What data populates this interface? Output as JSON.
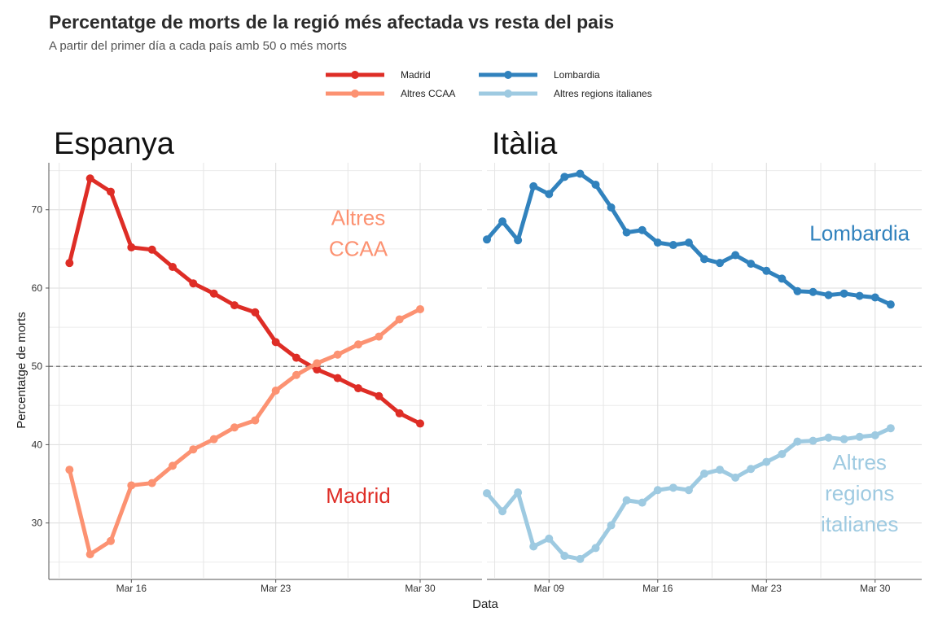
{
  "title": "Percentatge de morts de la regió més afectada vs resta del pais",
  "subtitle": "A partir del primer día a cada país amb 50 o més morts",
  "legend": [
    {
      "name": "Madrid",
      "color": "#de2d26"
    },
    {
      "name": "Lombardia",
      "color": "#3182bd"
    },
    {
      "name": "Altres CCAA",
      "color": "#fc9272"
    },
    {
      "name": "Altres regions italianes",
      "color": "#9ecae1"
    }
  ],
  "chart_data": {
    "type": "line",
    "xlabel": "Data",
    "ylabel": "Percentatge de morts",
    "ylim": [
      23,
      76
    ],
    "yticks": [
      30,
      40,
      50,
      60,
      70
    ],
    "reference_line": 50,
    "grid": true,
    "legend_position": "top",
    "panels": [
      {
        "title": "Espanya",
        "xlim": [
          "2020-03-12",
          "2020-04-02"
        ],
        "xticks": [
          {
            "date": "2020-03-16",
            "label": "Mar 16"
          },
          {
            "date": "2020-03-23",
            "label": "Mar 23"
          },
          {
            "date": "2020-03-30",
            "label": "Mar 30"
          }
        ],
        "labels": [
          {
            "text": [
              "Altres",
              "CCAA"
            ],
            "color": "#fc9272",
            "x": "2020-03-27",
            "y": 67
          },
          {
            "text": [
              "Madrid"
            ],
            "color": "#de2d26",
            "x": "2020-03-27",
            "y": 33.5
          }
        ],
        "series": [
          {
            "name": "Madrid",
            "color": "#de2d26",
            "x": [
              "2020-03-13",
              "2020-03-14",
              "2020-03-15",
              "2020-03-16",
              "2020-03-17",
              "2020-03-18",
              "2020-03-19",
              "2020-03-20",
              "2020-03-21",
              "2020-03-22",
              "2020-03-23",
              "2020-03-24",
              "2020-03-25",
              "2020-03-26",
              "2020-03-27",
              "2020-03-28",
              "2020-03-29",
              "2020-03-30",
              "2020-03-31"
            ],
            "y": [
              63.2,
              74.0,
              72.3,
              65.2,
              64.9,
              62.7,
              60.6,
              59.3,
              57.8,
              56.9,
              53.1,
              51.1,
              49.6,
              48.5,
              47.2,
              46.2,
              44.0,
              42.7,
              null
            ]
          },
          {
            "name": "Altres CCAA",
            "color": "#fc9272",
            "x": [
              "2020-03-13",
              "2020-03-14",
              "2020-03-15",
              "2020-03-16",
              "2020-03-17",
              "2020-03-18",
              "2020-03-19",
              "2020-03-20",
              "2020-03-21",
              "2020-03-22",
              "2020-03-23",
              "2020-03-24",
              "2020-03-25",
              "2020-03-26",
              "2020-03-27",
              "2020-03-28",
              "2020-03-29",
              "2020-03-30",
              "2020-03-31"
            ],
            "y": [
              36.8,
              26.0,
              27.7,
              34.8,
              35.1,
              37.3,
              39.4,
              40.7,
              42.2,
              43.1,
              46.9,
              48.9,
              50.4,
              51.5,
              52.8,
              53.8,
              56.0,
              57.3,
              null
            ]
          }
        ]
      },
      {
        "title": "Itàlia",
        "xlim": [
          "2020-03-05",
          "2020-04-02"
        ],
        "xticks": [
          {
            "date": "2020-03-09",
            "label": "Mar 09"
          },
          {
            "date": "2020-03-16",
            "label": "Mar 16"
          },
          {
            "date": "2020-03-23",
            "label": "Mar 23"
          },
          {
            "date": "2020-03-30",
            "label": "Mar 30"
          }
        ],
        "labels": [
          {
            "text": [
              "Lombardia"
            ],
            "color": "#3182bd",
            "x": "2020-03-29",
            "y": 67
          },
          {
            "text": [
              "Altres",
              "regions",
              "italianes"
            ],
            "color": "#9ecae1",
            "x": "2020-03-29",
            "y": 33.8
          }
        ],
        "series": [
          {
            "name": "Lombardia",
            "color": "#3182bd",
            "x": [
              "2020-03-05",
              "2020-03-06",
              "2020-03-07",
              "2020-03-08",
              "2020-03-09",
              "2020-03-10",
              "2020-03-11",
              "2020-03-12",
              "2020-03-13",
              "2020-03-14",
              "2020-03-15",
              "2020-03-16",
              "2020-03-17",
              "2020-03-18",
              "2020-03-19",
              "2020-03-20",
              "2020-03-21",
              "2020-03-22",
              "2020-03-23",
              "2020-03-24",
              "2020-03-25",
              "2020-03-26",
              "2020-03-27",
              "2020-03-28",
              "2020-03-29",
              "2020-03-30",
              "2020-03-31"
            ],
            "y": [
              66.2,
              68.5,
              66.1,
              73.0,
              72.0,
              74.2,
              74.6,
              73.2,
              70.3,
              67.1,
              67.4,
              65.8,
              65.5,
              65.8,
              63.7,
              63.2,
              64.2,
              63.1,
              62.2,
              61.2,
              59.6,
              59.5,
              59.1,
              59.3,
              59.0,
              58.8,
              57.9
            ]
          },
          {
            "name": "Altres regions italianes",
            "color": "#9ecae1",
            "x": [
              "2020-03-05",
              "2020-03-06",
              "2020-03-07",
              "2020-03-08",
              "2020-03-09",
              "2020-03-10",
              "2020-03-11",
              "2020-03-12",
              "2020-03-13",
              "2020-03-14",
              "2020-03-15",
              "2020-03-16",
              "2020-03-17",
              "2020-03-18",
              "2020-03-19",
              "2020-03-20",
              "2020-03-21",
              "2020-03-22",
              "2020-03-23",
              "2020-03-24",
              "2020-03-25",
              "2020-03-26",
              "2020-03-27",
              "2020-03-28",
              "2020-03-29",
              "2020-03-30",
              "2020-03-31"
            ],
            "y": [
              33.8,
              31.5,
              33.9,
              27.0,
              28.0,
              25.8,
              25.4,
              26.8,
              29.7,
              32.9,
              32.6,
              34.2,
              34.5,
              34.2,
              36.3,
              36.8,
              35.8,
              36.9,
              37.8,
              38.8,
              40.4,
              40.5,
              40.9,
              40.7,
              41.0,
              41.2,
              42.1
            ]
          }
        ]
      }
    ]
  }
}
